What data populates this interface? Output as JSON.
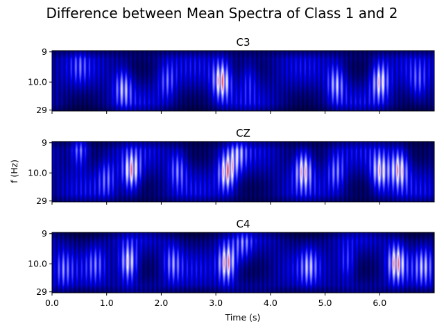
{
  "chart_data": {
    "type": "heatmap",
    "title": "Difference between Mean Spectra of Class 1 and 2",
    "xlabel": "Time (s)",
    "ylabel": "f (Hz)",
    "xlim": [
      0.0,
      7.0
    ],
    "x_ticks": [
      "0.0",
      "1.0",
      "2.0",
      "3.0",
      "4.0",
      "5.0",
      "6.0"
    ],
    "y_ticks": [
      "9",
      "10.0",
      "29"
    ],
    "colormap": [
      "#000000",
      "#0000ff",
      "#ffffff",
      "#ff0000"
    ],
    "panels": [
      {
        "title": "C3",
        "hotspots": [
          {
            "t": 0.5,
            "f_pos": 0.25,
            "level": 0.45
          },
          {
            "t": 1.3,
            "f_pos": 0.6,
            "level": 0.7
          },
          {
            "t": 2.1,
            "f_pos": 0.5,
            "level": 0.55
          },
          {
            "t": 3.1,
            "f_pos": 0.5,
            "level": 0.95
          },
          {
            "t": 3.6,
            "f_pos": 0.45,
            "level": 0.5
          },
          {
            "t": 5.2,
            "f_pos": 0.55,
            "level": 0.7
          },
          {
            "t": 6.0,
            "f_pos": 0.5,
            "level": 0.85
          },
          {
            "t": 6.7,
            "f_pos": 0.55,
            "level": 0.5
          }
        ]
      },
      {
        "title": "CZ",
        "hotspots": [
          {
            "t": 0.5,
            "f_pos": 0.1,
            "level": 0.7
          },
          {
            "t": 1.0,
            "f_pos": 0.6,
            "level": 0.55
          },
          {
            "t": 1.45,
            "f_pos": 0.5,
            "level": 0.9
          },
          {
            "t": 2.3,
            "f_pos": 0.45,
            "level": 0.6
          },
          {
            "t": 3.2,
            "f_pos": 0.5,
            "level": 0.93
          },
          {
            "t": 3.4,
            "f_pos": 0.2,
            "level": 0.6
          },
          {
            "t": 4.6,
            "f_pos": 0.45,
            "level": 0.88
          },
          {
            "t": 5.2,
            "f_pos": 0.5,
            "level": 0.6
          },
          {
            "t": 6.0,
            "f_pos": 0.5,
            "level": 0.85
          },
          {
            "t": 6.35,
            "f_pos": 0.45,
            "level": 0.9
          }
        ]
      },
      {
        "title": "C4",
        "hotspots": [
          {
            "t": 0.2,
            "f_pos": 0.6,
            "level": 0.55
          },
          {
            "t": 0.8,
            "f_pos": 0.5,
            "level": 0.5
          },
          {
            "t": 1.4,
            "f_pos": 0.5,
            "level": 0.88
          },
          {
            "t": 2.2,
            "f_pos": 0.5,
            "level": 0.6
          },
          {
            "t": 3.2,
            "f_pos": 0.5,
            "level": 0.95
          },
          {
            "t": 3.5,
            "f_pos": 0.2,
            "level": 0.55
          },
          {
            "t": 4.7,
            "f_pos": 0.55,
            "level": 0.6
          },
          {
            "t": 5.4,
            "f_pos": 0.5,
            "level": 0.55
          },
          {
            "t": 6.3,
            "f_pos": 0.5,
            "level": 0.88
          },
          {
            "t": 6.8,
            "f_pos": 0.55,
            "level": 0.6
          }
        ]
      }
    ]
  }
}
